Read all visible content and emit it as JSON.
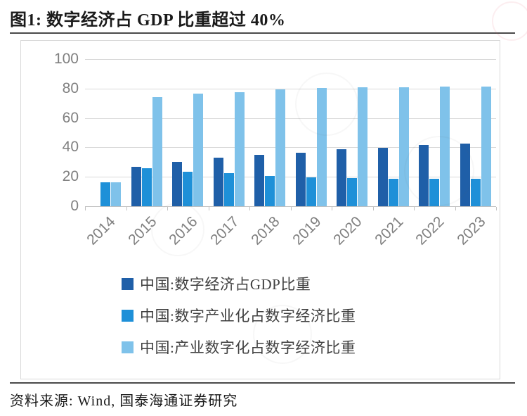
{
  "page": {
    "title": "图1: 数字经济占 GDP 比重超过 40%",
    "source": "资料来源: Wind, 国泰海通证券研究"
  },
  "chart_data": {
    "type": "bar",
    "title": "图1: 数字经济占 GDP 比重超过 40%",
    "categories": [
      "2014",
      "2015",
      "2016",
      "2017",
      "2018",
      "2019",
      "2020",
      "2021",
      "2022",
      "2023"
    ],
    "series": [
      {
        "name": "中国:数字经济占GDP比重",
        "color": "#1f5fa8",
        "values": [
          null,
          27.0,
          30.3,
          32.9,
          34.8,
          36.2,
          38.6,
          39.8,
          41.5,
          42.8
        ]
      },
      {
        "name": "中国:数字产业化占数字经济比重",
        "color": "#1e90d8",
        "values": [
          16.2,
          25.8,
          23.4,
          22.4,
          20.5,
          19.8,
          19.1,
          18.9,
          18.7,
          18.7
        ]
      },
      {
        "name": "中国:产业数字化占数字经济比重",
        "color": "#7fc2ea",
        "values": [
          16.2,
          74.2,
          76.6,
          77.6,
          79.5,
          80.2,
          80.9,
          81.1,
          81.3,
          81.3
        ]
      }
    ],
    "xlabel": "",
    "ylabel": "",
    "ylim": [
      0,
      100
    ],
    "yticks": [
      100,
      80,
      60,
      40,
      20,
      0
    ],
    "grid": true,
    "legend_position": "bottom-left"
  }
}
